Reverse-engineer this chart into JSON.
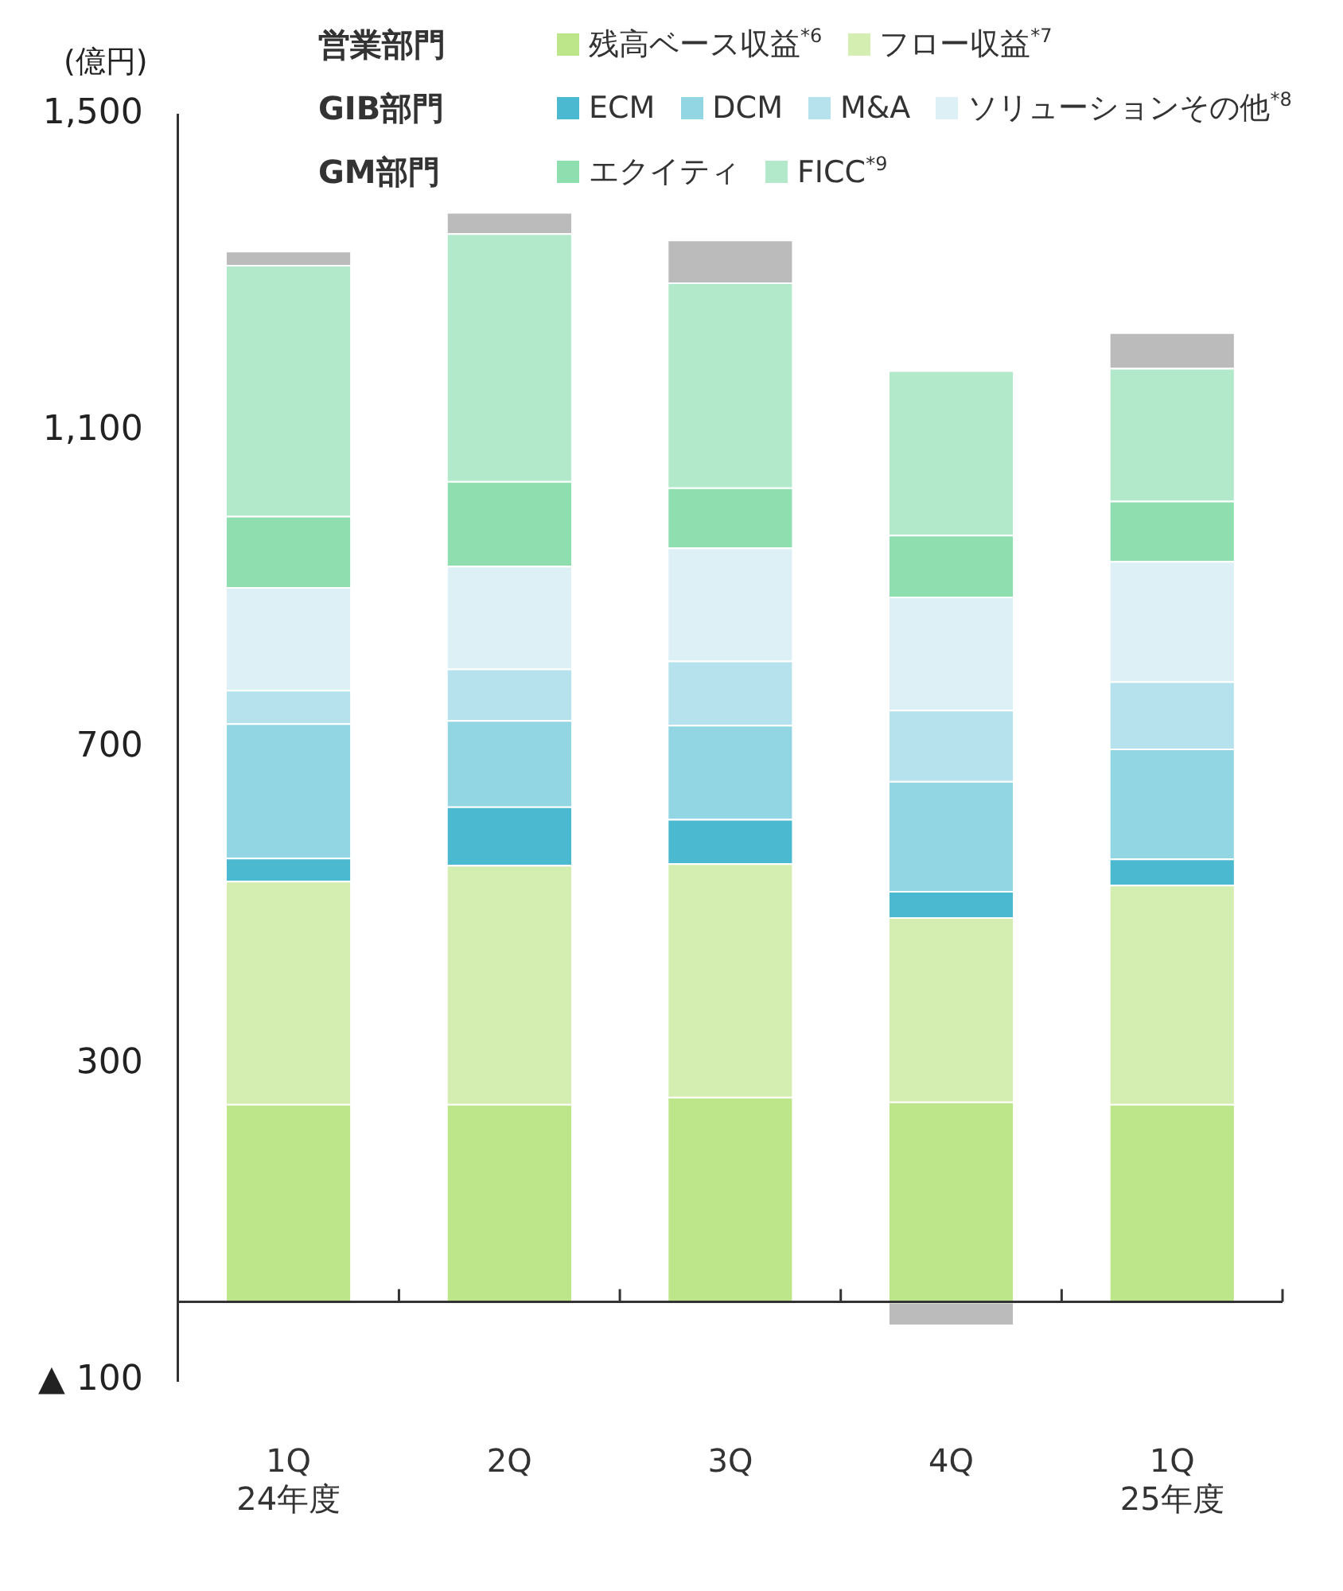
{
  "chart_data": {
    "type": "bar",
    "stacked": true,
    "ylabel": "(億円)",
    "categories": [
      "1Q\n24年度",
      "2Q",
      "3Q",
      "4Q",
      "1Q\n25年度"
    ],
    "annotations": [
      "営業部門",
      "GIB部門",
      "GM部門"
    ],
    "series": [
      {
        "name": "残高ベース収益$^{*6}$",
        "color": "#bde58a",
        "values": [
          250,
          250,
          259,
          253,
          250
        ]
      },
      {
        "name": "フロー収益$^{*7}$",
        "color": "#d4edb0",
        "values": [
          282,
          302,
          295,
          233,
          277
        ]
      },
      {
        "name": "ECM",
        "color": "#4bbad0",
        "values": [
          29,
          74,
          56,
          33,
          33
        ]
      },
      {
        "name": "DCM",
        "color": "#93d6e3",
        "values": [
          170,
          109,
          119,
          139,
          139
        ]
      },
      {
        "name": "M&A",
        "color": "#b5e2ec",
        "values": [
          42,
          65,
          81,
          90,
          85
        ]
      },
      {
        "name": "ソリューションその他$^{*8}$",
        "color": "#dcf0f5",
        "values": [
          130,
          130,
          143,
          143,
          152
        ]
      },
      {
        "name": "エクイティ",
        "color": "#8fdeb0",
        "values": [
          90,
          107,
          76,
          78,
          76
        ]
      },
      {
        "name": "FICC$^{*9}$",
        "color": "#b3e9cb",
        "values": [
          317,
          313,
          259,
          208,
          168
        ]
      },
      {
        "color": "#bbbbbb",
        "values": [
          18,
          27,
          54,
          -29,
          45
        ]
      }
    ],
    "ylim": [
      -100,
      1500
    ],
    "yticks": [
      {
        "value": -100,
        "label": "▲ 100"
      },
      300,
      700,
      {
        "value": 1100,
        "label": "1,100"
      },
      {
        "value": 1500,
        "label": "1,500"
      }
    ],
    "grid": false,
    "legend": "top right"
  }
}
